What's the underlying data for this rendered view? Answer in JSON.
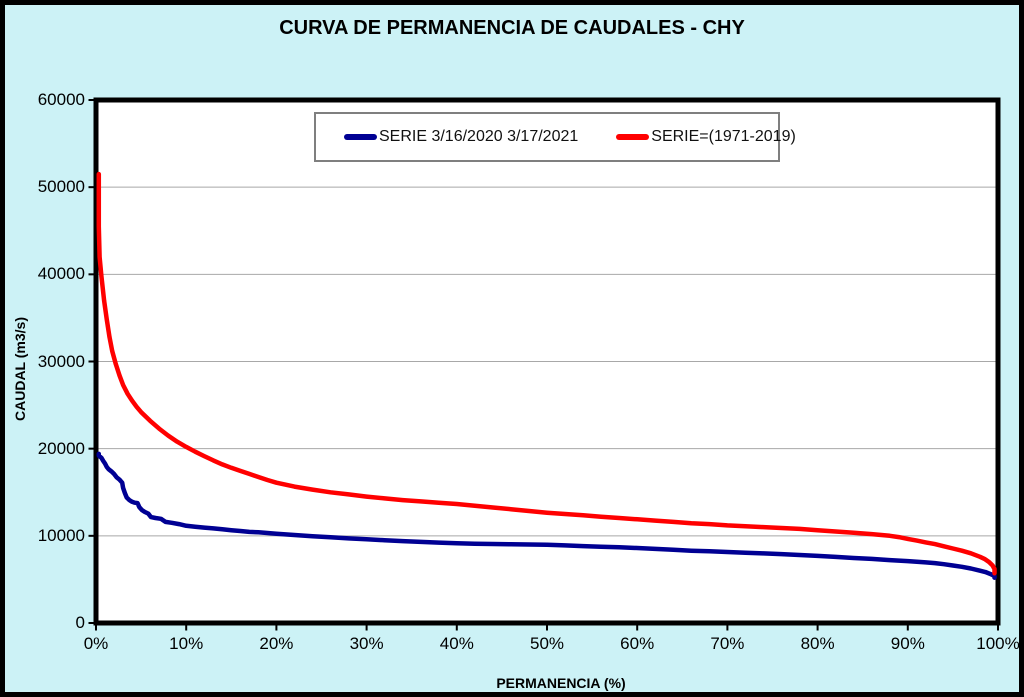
{
  "page": {
    "background": "#CCF2F6",
    "frame_border_color": "#000000"
  },
  "chart_data": {
    "type": "line",
    "title": "CURVA DE PERMANENCIA DE CAUDALES - CHY",
    "xlabel": "PERMANENCIA (%)",
    "ylabel": "CAUDAL (m3/s)",
    "xlim": [
      0,
      100
    ],
    "ylim": [
      0,
      60000
    ],
    "grid": "horizontal",
    "grid_color": "#A8A8A8",
    "plot_background": "#FFFFFF",
    "plot_border_color": "#000000",
    "legend_position": "top-center",
    "xticks": [
      {
        "label": "0%",
        "value": 0
      },
      {
        "label": "10%",
        "value": 10
      },
      {
        "label": "20%",
        "value": 20
      },
      {
        "label": "30%",
        "value": 30
      },
      {
        "label": "40%",
        "value": 40
      },
      {
        "label": "50%",
        "value": 50
      },
      {
        "label": "60%",
        "value": 60
      },
      {
        "label": "70%",
        "value": 70
      },
      {
        "label": "80%",
        "value": 80
      },
      {
        "label": "90%",
        "value": 90
      },
      {
        "label": "100%",
        "value": 100
      }
    ],
    "yticks": [
      {
        "label": "0",
        "value": 0
      },
      {
        "label": "10000",
        "value": 10000
      },
      {
        "label": "20000",
        "value": 20000
      },
      {
        "label": "30000",
        "value": 30000
      },
      {
        "label": "40000",
        "value": 40000
      },
      {
        "label": "50000",
        "value": 50000
      },
      {
        "label": "60000",
        "value": 60000
      }
    ],
    "series": [
      {
        "name": "SERIE 3/16/2020 3/17/2021",
        "color": "#000093",
        "points": [
          [
            0,
            19400
          ],
          [
            0.3,
            19200
          ],
          [
            0.6,
            18950
          ],
          [
            0.8,
            18600
          ],
          [
            1,
            18300
          ],
          [
            1.2,
            17900
          ],
          [
            1.4,
            17650
          ],
          [
            1.7,
            17400
          ],
          [
            2,
            17100
          ],
          [
            2.3,
            16700
          ],
          [
            2.6,
            16450
          ],
          [
            2.9,
            16100
          ],
          [
            3,
            15500
          ],
          [
            3.2,
            14900
          ],
          [
            3.4,
            14400
          ],
          [
            3.7,
            14100
          ],
          [
            4,
            13900
          ],
          [
            4.3,
            13800
          ],
          [
            4.6,
            13750
          ],
          [
            4.8,
            13300
          ],
          [
            5.1,
            12950
          ],
          [
            5.4,
            12750
          ],
          [
            5.8,
            12550
          ],
          [
            6.1,
            12150
          ],
          [
            6.6,
            12050
          ],
          [
            7.2,
            11950
          ],
          [
            7.7,
            11600
          ],
          [
            8.4,
            11500
          ],
          [
            9.2,
            11350
          ],
          [
            10,
            11150
          ],
          [
            11,
            11050
          ],
          [
            12,
            10950
          ],
          [
            13,
            10850
          ],
          [
            14,
            10750
          ],
          [
            15,
            10650
          ],
          [
            16,
            10550
          ],
          [
            17,
            10450
          ],
          [
            18,
            10400
          ],
          [
            19,
            10320
          ],
          [
            20,
            10250
          ],
          [
            22,
            10100
          ],
          [
            24,
            9950
          ],
          [
            26,
            9830
          ],
          [
            28,
            9700
          ],
          [
            30,
            9600
          ],
          [
            32,
            9500
          ],
          [
            34,
            9400
          ],
          [
            36,
            9300
          ],
          [
            38,
            9220
          ],
          [
            40,
            9150
          ],
          [
            42,
            9100
          ],
          [
            44,
            9060
          ],
          [
            46,
            9030
          ],
          [
            48,
            9010
          ],
          [
            50,
            8980
          ],
          [
            52,
            8900
          ],
          [
            54,
            8820
          ],
          [
            56,
            8750
          ],
          [
            58,
            8680
          ],
          [
            60,
            8600
          ],
          [
            62,
            8500
          ],
          [
            64,
            8400
          ],
          [
            66,
            8300
          ],
          [
            68,
            8220
          ],
          [
            70,
            8150
          ],
          [
            72,
            8050
          ],
          [
            74,
            7980
          ],
          [
            76,
            7900
          ],
          [
            78,
            7800
          ],
          [
            80,
            7700
          ],
          [
            82,
            7580
          ],
          [
            84,
            7460
          ],
          [
            86,
            7350
          ],
          [
            88,
            7220
          ],
          [
            90,
            7100
          ],
          [
            91,
            7020
          ],
          [
            92,
            6950
          ],
          [
            93,
            6870
          ],
          [
            94,
            6750
          ],
          [
            95,
            6600
          ],
          [
            96,
            6450
          ],
          [
            97,
            6250
          ],
          [
            98,
            6000
          ],
          [
            98.6,
            5850
          ],
          [
            99.2,
            5600
          ],
          [
            99.7,
            5400
          ],
          [
            100,
            5200
          ]
        ]
      },
      {
        "name": "SERIE=(1971-2019)",
        "color": "#FF0000",
        "points": [
          [
            0,
            51500
          ],
          [
            0.2,
            45500
          ],
          [
            0.4,
            42000
          ],
          [
            0.6,
            39800
          ],
          [
            0.9,
            37000
          ],
          [
            1.2,
            34800
          ],
          [
            1.5,
            32800
          ],
          [
            1.8,
            31200
          ],
          [
            2.2,
            29700
          ],
          [
            2.6,
            28400
          ],
          [
            3,
            27300
          ],
          [
            3.5,
            26300
          ],
          [
            4,
            25500
          ],
          [
            4.5,
            24800
          ],
          [
            5,
            24200
          ],
          [
            6,
            23200
          ],
          [
            7,
            22300
          ],
          [
            8,
            21500
          ],
          [
            9,
            20800
          ],
          [
            10,
            20200
          ],
          [
            11,
            19650
          ],
          [
            12,
            19150
          ],
          [
            13,
            18650
          ],
          [
            14,
            18200
          ],
          [
            15,
            17800
          ],
          [
            16,
            17450
          ],
          [
            17,
            17100
          ],
          [
            18,
            16750
          ],
          [
            19,
            16400
          ],
          [
            20,
            16100
          ],
          [
            22,
            15650
          ],
          [
            24,
            15300
          ],
          [
            26,
            15000
          ],
          [
            28,
            14750
          ],
          [
            30,
            14500
          ],
          [
            32,
            14300
          ],
          [
            34,
            14100
          ],
          [
            36,
            13950
          ],
          [
            38,
            13800
          ],
          [
            40,
            13650
          ],
          [
            42,
            13450
          ],
          [
            44,
            13250
          ],
          [
            46,
            13050
          ],
          [
            48,
            12850
          ],
          [
            50,
            12650
          ],
          [
            52,
            12500
          ],
          [
            54,
            12350
          ],
          [
            56,
            12200
          ],
          [
            58,
            12050
          ],
          [
            60,
            11900
          ],
          [
            62,
            11750
          ],
          [
            64,
            11600
          ],
          [
            66,
            11450
          ],
          [
            68,
            11350
          ],
          [
            70,
            11200
          ],
          [
            72,
            11100
          ],
          [
            74,
            11000
          ],
          [
            76,
            10900
          ],
          [
            78,
            10800
          ],
          [
            80,
            10650
          ],
          [
            82,
            10500
          ],
          [
            84,
            10350
          ],
          [
            86,
            10200
          ],
          [
            88,
            10000
          ],
          [
            89,
            9850
          ],
          [
            90,
            9650
          ],
          [
            91,
            9450
          ],
          [
            92,
            9250
          ],
          [
            93,
            9050
          ],
          [
            94,
            8800
          ],
          [
            95,
            8550
          ],
          [
            96,
            8300
          ],
          [
            97,
            8000
          ],
          [
            98,
            7600
          ],
          [
            98.5,
            7350
          ],
          [
            99,
            7000
          ],
          [
            99.4,
            6600
          ],
          [
            99.7,
            6200
          ],
          [
            100,
            5700
          ]
        ]
      }
    ]
  }
}
